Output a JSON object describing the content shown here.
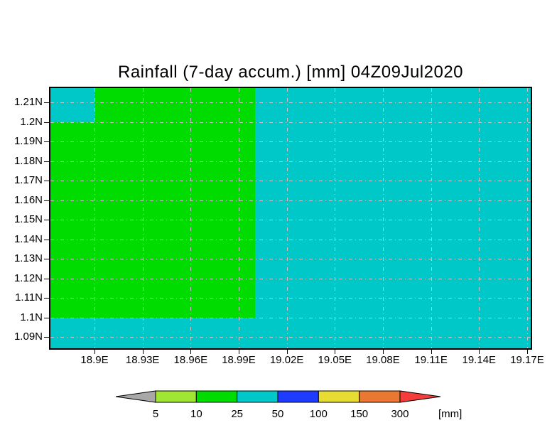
{
  "title": "Rainfall (7-day accum.) [mm] 04Z09Jul2020",
  "colors": {
    "background": "#ffffff",
    "plot_border": "#000000",
    "grid": "#c8c4c4",
    "fill_10_25": "#00dc00",
    "fill_25_50": "#00c8c8"
  },
  "chart_data": {
    "type": "heatmap",
    "title": "Rainfall (7-day accum.) [mm] 04Z09Jul2020",
    "variable": "Rainfall (7-day accum.)",
    "units": "mm",
    "valid_time": "04Z09Jul2020",
    "xlabel": "",
    "ylabel": "",
    "x_ticks": [
      "18.9E",
      "18.93E",
      "18.96E",
      "18.99E",
      "19.02E",
      "19.05E",
      "19.08E",
      "19.11E",
      "19.14E",
      "19.17E"
    ],
    "y_ticks": [
      "1.21N",
      "1.2N",
      "1.19N",
      "1.18N",
      "1.17N",
      "1.16N",
      "1.15N",
      "1.14N",
      "1.13N",
      "1.12N",
      "1.11N",
      "1.1N",
      "1.09N"
    ],
    "grid": "dashed",
    "background_region": {
      "range": "25-50 mm",
      "color": "#00c8c8",
      "description": "cyan shading covers the full map domain"
    },
    "regions": [
      {
        "range": "10-25 mm",
        "color": "#00dc00",
        "lat_extent": "1.1N to 1.2N",
        "lon_extent": "west edge to 19.0E",
        "frac": {
          "x": 0,
          "y": 0.1311,
          "w": 0.426,
          "h": 0.7514
        }
      },
      {
        "range": "10-25 mm",
        "color": "#00dc00",
        "lat_extent": "1.2N to north edge",
        "lon_extent": "18.9E to 19.0E",
        "frac": {
          "x": 0.0917,
          "y": 0,
          "w": 0.3343,
          "h": 0.1311
        }
      }
    ],
    "colorbar": {
      "levels": [
        5,
        10,
        25,
        50,
        100,
        150,
        300
      ],
      "labels": [
        "5",
        "10",
        "25",
        "50",
        "100",
        "150",
        "300"
      ],
      "unit_label": "[mm]",
      "arrow_low_color": "#a8a8a8",
      "segment_colors": [
        "#a0e632",
        "#00dc00",
        "#00c8c8",
        "#1e3cff",
        "#e6dc32",
        "#e87832"
      ],
      "arrow_high_color": "#f53c3c"
    }
  }
}
